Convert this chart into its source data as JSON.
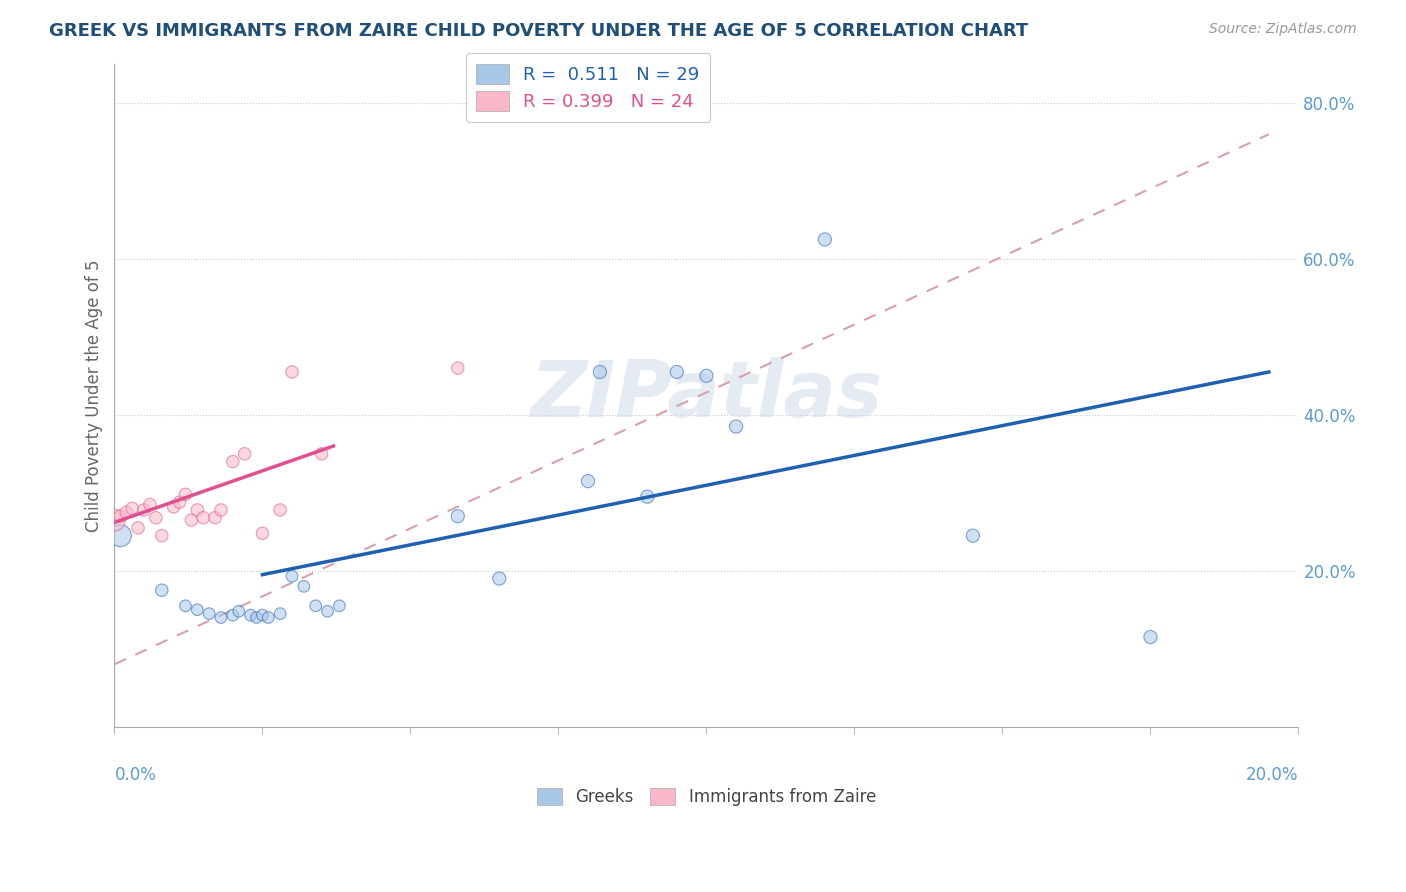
{
  "title": "GREEK VS IMMIGRANTS FROM ZAIRE CHILD POVERTY UNDER THE AGE OF 5 CORRELATION CHART",
  "source": "Source: ZipAtlas.com",
  "ylabel": "Child Poverty Under the Age of 5",
  "xlim": [
    0.0,
    0.2
  ],
  "ylim": [
    0.0,
    0.85
  ],
  "yticks": [
    0.0,
    0.2,
    0.4,
    0.6,
    0.8
  ],
  "ytick_labels": [
    "",
    "20.0%",
    "40.0%",
    "60.0%",
    "80.0%"
  ],
  "legend_r1": "R =  0.511   N = 29",
  "legend_r2": "R = 0.399   N = 24",
  "blue_scatter_color": "#a8c8e8",
  "pink_scatter_color": "#f8b8c8",
  "blue_line_color": "#2060b0",
  "pink_line_color": "#e05090",
  "dashed_line_color": "#d8a0a8",
  "title_color": "#1f4e79",
  "axis_label_color": "#5b9bd5",
  "watermark": "ZIPatlas",
  "greek_x": [
    0.001,
    0.008,
    0.012,
    0.014,
    0.016,
    0.018,
    0.02,
    0.021,
    0.023,
    0.024,
    0.025,
    0.026,
    0.028,
    0.03,
    0.032,
    0.034,
    0.036,
    0.038,
    0.058,
    0.065,
    0.08,
    0.082,
    0.09,
    0.095,
    0.1,
    0.105,
    0.12,
    0.145,
    0.175
  ],
  "greek_y": [
    0.245,
    0.175,
    0.155,
    0.15,
    0.145,
    0.14,
    0.143,
    0.148,
    0.143,
    0.14,
    0.143,
    0.14,
    0.145,
    0.193,
    0.18,
    0.155,
    0.148,
    0.155,
    0.27,
    0.19,
    0.315,
    0.455,
    0.295,
    0.455,
    0.45,
    0.385,
    0.625,
    0.245,
    0.115
  ],
  "greek_sizes": [
    250,
    80,
    70,
    70,
    70,
    70,
    70,
    70,
    70,
    70,
    70,
    70,
    70,
    70,
    70,
    70,
    70,
    70,
    90,
    90,
    90,
    90,
    90,
    90,
    90,
    90,
    90,
    90,
    90
  ],
  "zaire_x": [
    0.0,
    0.001,
    0.002,
    0.003,
    0.004,
    0.005,
    0.006,
    0.007,
    0.008,
    0.01,
    0.011,
    0.012,
    0.013,
    0.014,
    0.015,
    0.017,
    0.018,
    0.02,
    0.022,
    0.025,
    0.028,
    0.03,
    0.035,
    0.058
  ],
  "zaire_y": [
    0.265,
    0.27,
    0.275,
    0.28,
    0.255,
    0.278,
    0.285,
    0.268,
    0.245,
    0.282,
    0.288,
    0.298,
    0.265,
    0.278,
    0.268,
    0.268,
    0.278,
    0.34,
    0.35,
    0.248,
    0.278,
    0.455,
    0.35,
    0.46
  ],
  "zaire_sizes": [
    250,
    80,
    80,
    80,
    80,
    80,
    80,
    80,
    80,
    80,
    80,
    80,
    80,
    80,
    80,
    80,
    80,
    80,
    80,
    80,
    80,
    80,
    80,
    80
  ],
  "blue_trendline_x": [
    0.025,
    0.195
  ],
  "blue_trendline_y": [
    0.195,
    0.455
  ],
  "pink_trendline_x": [
    0.0,
    0.037
  ],
  "pink_trendline_y": [
    0.262,
    0.36
  ],
  "dashed_trendline_x": [
    0.0,
    0.195
  ],
  "dashed_trendline_y": [
    0.08,
    0.76
  ]
}
